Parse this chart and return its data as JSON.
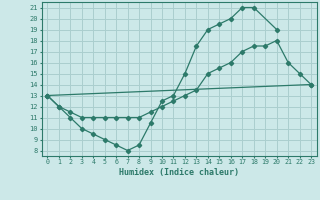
{
  "xlabel": "Humidex (Indice chaleur)",
  "bg_color": "#cce8e8",
  "line_color": "#2d7a6a",
  "grid_color": "#aacece",
  "xlim": [
    -0.5,
    23.5
  ],
  "ylim": [
    7.5,
    21.5
  ],
  "yticks": [
    8,
    9,
    10,
    11,
    12,
    13,
    14,
    15,
    16,
    17,
    18,
    19,
    20,
    21
  ],
  "xticks": [
    0,
    1,
    2,
    3,
    4,
    5,
    6,
    7,
    8,
    9,
    10,
    11,
    12,
    13,
    14,
    15,
    16,
    17,
    18,
    19,
    20,
    21,
    22,
    23
  ],
  "line1_x": [
    0,
    1,
    2,
    3,
    4,
    5,
    6,
    7,
    8,
    9,
    10,
    11,
    12,
    13,
    14,
    15,
    16,
    17,
    18,
    20
  ],
  "line1_y": [
    13,
    12,
    11,
    10,
    9.5,
    9,
    8.5,
    8,
    8.5,
    10.5,
    12.5,
    13,
    15,
    17.5,
    19,
    19.5,
    20,
    21,
    21,
    19
  ],
  "line2_x": [
    0,
    1,
    2,
    3,
    4,
    5,
    6,
    7,
    8,
    9,
    10,
    11,
    12,
    13,
    14,
    15,
    16,
    17,
    18,
    19,
    20,
    21,
    22,
    23
  ],
  "line2_y": [
    13,
    12,
    11.5,
    11,
    11,
    11,
    11,
    11,
    11,
    11.5,
    12,
    12.5,
    13,
    13.5,
    15,
    15.5,
    16,
    17,
    17.5,
    17.5,
    18,
    16,
    15,
    14
  ],
  "line3_x": [
    0,
    23
  ],
  "line3_y": [
    13,
    14
  ]
}
